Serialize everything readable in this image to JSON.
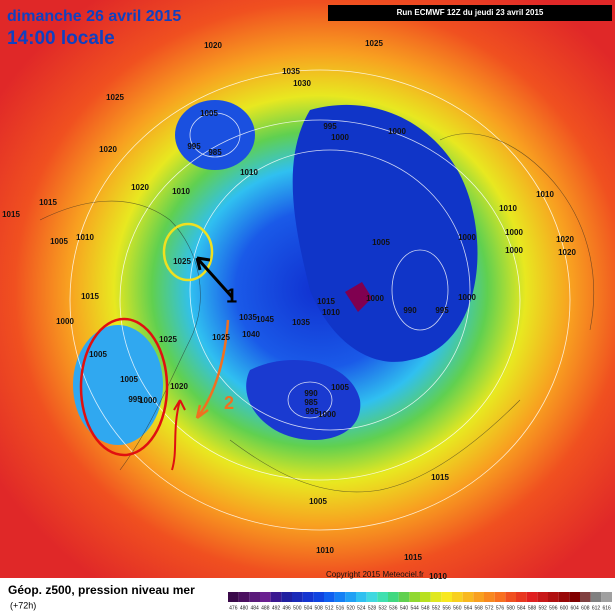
{
  "header": {
    "date": "dimanche 26 avril 2015",
    "time": "14:00 locale",
    "run": "Run ECMWF 12Z du jeudi 23 avril 2015"
  },
  "footer": {
    "title": "Géop. z500, pression niveau mer",
    "lead": "(+72h)",
    "copyright": "Copyright 2015 Meteociel.fr"
  },
  "annotations": [
    "1",
    "2"
  ],
  "pressure_labels": [
    "1020",
    "1025",
    "1025",
    "1035",
    "1030",
    "1005",
    "995",
    "1000",
    "1000",
    "995",
    "985",
    "1010",
    "1020",
    "1015",
    "1020",
    "1015",
    "1010",
    "1010",
    "1005",
    "1025",
    "1005",
    "1000",
    "1010",
    "1000",
    "1000",
    "1010",
    "1020",
    "1020",
    "1015",
    "1000",
    "1015",
    "1010",
    "1000",
    "990",
    "995",
    "1000",
    "1035",
    "1045",
    "1040",
    "1035",
    "1025",
    "1025",
    "1005",
    "1005",
    "1000",
    "995",
    "1020",
    "1005",
    "990",
    "985",
    "995",
    "1000",
    "1015",
    "1005",
    "1015",
    "1010",
    "1010"
  ],
  "colorbar": {
    "labels": [
      476,
      480,
      484,
      488,
      492,
      496,
      500,
      504,
      508,
      512,
      516,
      520,
      524,
      528,
      532,
      536,
      540,
      544,
      548,
      552,
      556,
      560,
      564,
      568,
      572,
      576,
      580,
      584,
      588,
      592,
      596,
      600,
      604,
      608,
      612,
      616
    ],
    "colors": [
      "#3a0a4a",
      "#4b1060",
      "#5a1a7a",
      "#6a2090",
      "#3a1890",
      "#2020a0",
      "#1a2ab8",
      "#1535d0",
      "#1044e0",
      "#1060f0",
      "#1580f5",
      "#20a0f5",
      "#30c0f0",
      "#40d8e0",
      "#40e0b0",
      "#40d880",
      "#60d050",
      "#90d830",
      "#b8e020",
      "#e0e820",
      "#f8e820",
      "#f8d020",
      "#f8b820",
      "#f8a020",
      "#f88820",
      "#f87020",
      "#f05020",
      "#e83820",
      "#e02020",
      "#c81818",
      "#b01010",
      "#980808",
      "#800000",
      "#804040",
      "#808080",
      "#a0a0a0"
    ]
  }
}
